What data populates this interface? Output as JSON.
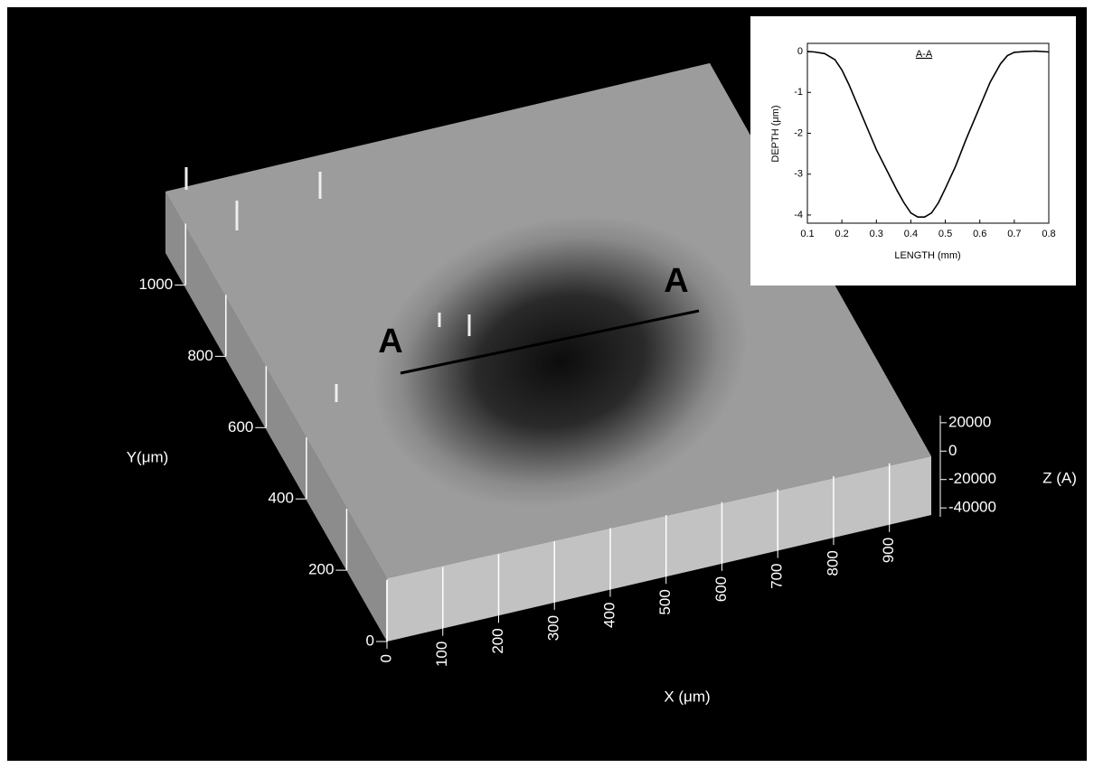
{
  "chart_data": [
    {
      "type": "surface3d",
      "xlabel": "X (μm)",
      "ylabel": "Y(μm)",
      "zlabel": "Z (A)",
      "section_labels": [
        "A",
        "A"
      ],
      "xlim": [
        0,
        975
      ],
      "xticks": [
        0,
        100,
        200,
        300,
        400,
        500,
        600,
        700,
        800,
        900
      ],
      "ylim": [
        0,
        1100
      ],
      "yticks": [
        0,
        200,
        400,
        600,
        800,
        1000
      ],
      "zlim": [
        -45000,
        25000
      ],
      "zticks": [
        20000,
        0,
        -20000,
        -40000
      ]
    },
    {
      "type": "line",
      "title": "A-A",
      "xlabel": "LENGTH (mm)",
      "ylabel": "DEPTH (μm)",
      "x": [
        0.1,
        0.12,
        0.15,
        0.18,
        0.2,
        0.22,
        0.25,
        0.28,
        0.3,
        0.33,
        0.36,
        0.38,
        0.4,
        0.42,
        0.44,
        0.46,
        0.48,
        0.5,
        0.53,
        0.56,
        0.6,
        0.63,
        0.66,
        0.68,
        0.7,
        0.73,
        0.76,
        0.8
      ],
      "series": [
        {
          "name": "A-A",
          "color": "#000000",
          "values": [
            0,
            -0.01,
            -0.05,
            -0.2,
            -0.45,
            -0.8,
            -1.4,
            -2.0,
            -2.4,
            -2.9,
            -3.4,
            -3.7,
            -3.95,
            -4.05,
            -4.05,
            -3.95,
            -3.7,
            -3.35,
            -2.8,
            -2.15,
            -1.35,
            -0.75,
            -0.3,
            -0.1,
            -0.02,
            0,
            0.01,
            -0.01
          ]
        }
      ],
      "xlim": [
        0.1,
        0.8
      ],
      "xticks": [
        0.1,
        0.2,
        0.3,
        0.4,
        0.5,
        0.6,
        0.7,
        0.8
      ],
      "ylim": [
        -4.2,
        0.2
      ],
      "yticks": [
        0,
        -1,
        -2,
        -3,
        -4
      ]
    }
  ]
}
